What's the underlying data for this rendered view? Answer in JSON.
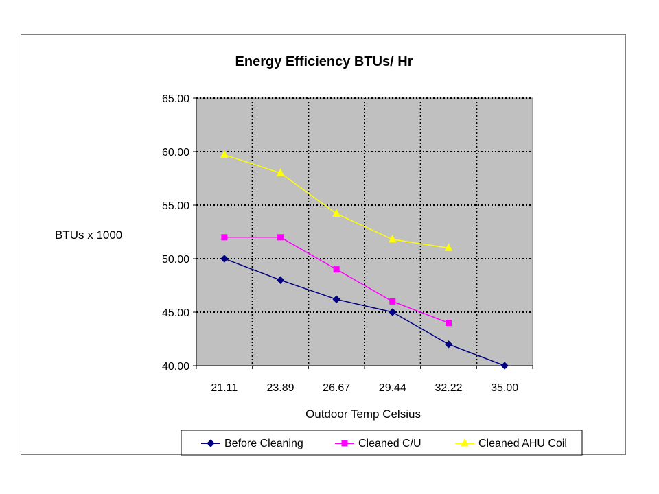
{
  "chart_data": {
    "type": "line",
    "title": "Energy Efficiency BTUs/ Hr",
    "xlabel": "Outdoor Temp Celsius",
    "ylabel": "BTUs x 1000",
    "categories": [
      "21.11",
      "23.89",
      "26.67",
      "29.44",
      "32.22",
      "35.00"
    ],
    "ylim": [
      40,
      65
    ],
    "yticks": [
      "40.00",
      "45.00",
      "50.00",
      "55.00",
      "60.00",
      "65.00"
    ],
    "grid": true,
    "legend_position": "bottom",
    "plot_background": "#c0c0c0",
    "series": [
      {
        "name": "Before Cleaning",
        "color": "#000080",
        "marker": "diamond",
        "values": [
          50.0,
          48.0,
          46.2,
          45.0,
          42.0,
          40.0
        ]
      },
      {
        "name": "Cleaned C/U",
        "color": "#ff00ff",
        "marker": "square",
        "values": [
          52.0,
          52.0,
          49.0,
          46.0,
          44.0,
          null
        ]
      },
      {
        "name": "Cleaned AHU Coil",
        "color": "#ffff00",
        "marker": "triangle",
        "values": [
          59.7,
          58.0,
          54.2,
          51.8,
          51.0,
          null
        ]
      }
    ]
  }
}
